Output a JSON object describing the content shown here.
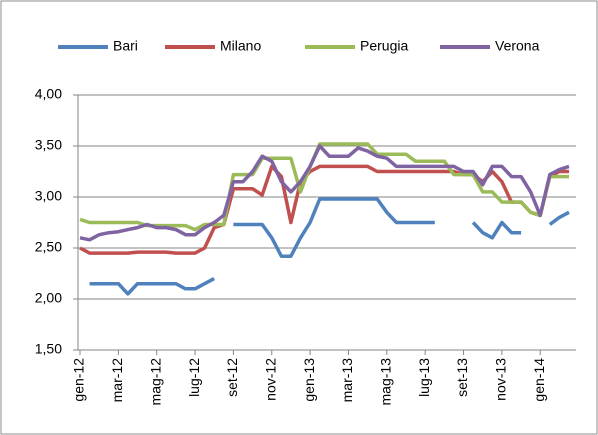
{
  "chart_data": {
    "type": "line",
    "categories": [
      "gen-12",
      null,
      null,
      null,
      "mar-12",
      null,
      null,
      null,
      "mag-12",
      null,
      null,
      null,
      "lug-12",
      null,
      null,
      null,
      "set-12",
      null,
      null,
      null,
      "nov-12",
      null,
      null,
      null,
      "gen-13",
      null,
      null,
      null,
      "mar-13",
      null,
      null,
      null,
      "mag-13",
      null,
      null,
      null,
      "lug-13",
      null,
      null,
      null,
      "set-13",
      null,
      null,
      null,
      "nov-13",
      null,
      null,
      null,
      "gen-14",
      null,
      null,
      null
    ],
    "series": [
      {
        "name": "Bari",
        "color": "#4f81bd",
        "values": [
          null,
          2.15,
          2.15,
          2.15,
          2.15,
          2.05,
          2.15,
          2.15,
          2.15,
          2.15,
          2.15,
          2.1,
          2.1,
          2.15,
          2.2,
          null,
          2.73,
          2.73,
          2.73,
          2.73,
          2.6,
          2.42,
          2.42,
          2.6,
          2.75,
          2.98,
          2.98,
          2.98,
          2.98,
          2.98,
          2.98,
          2.98,
          2.85,
          2.75,
          2.75,
          2.75,
          2.75,
          2.75,
          null,
          null,
          null,
          2.75,
          2.65,
          2.6,
          2.75,
          2.65,
          2.65,
          null,
          null,
          2.73,
          2.8,
          2.85
        ]
      },
      {
        "name": "Milano",
        "color": "#c0504d",
        "values": [
          2.5,
          2.45,
          2.45,
          2.45,
          2.45,
          2.45,
          2.46,
          2.46,
          2.46,
          2.46,
          2.45,
          2.45,
          2.45,
          2.5,
          2.7,
          2.73,
          3.08,
          3.08,
          3.08,
          3.02,
          3.3,
          3.2,
          2.75,
          3.15,
          3.25,
          3.3,
          3.3,
          3.3,
          3.3,
          3.3,
          3.3,
          3.25,
          3.25,
          3.25,
          3.25,
          3.25,
          3.25,
          3.25,
          3.25,
          3.25,
          3.22,
          3.22,
          3.15,
          3.25,
          3.15,
          2.95,
          2.95,
          2.85,
          2.82,
          3.2,
          3.25,
          3.25
        ]
      },
      {
        "name": "Perugia",
        "color": "#9bbb59",
        "values": [
          2.78,
          2.75,
          2.75,
          2.75,
          2.75,
          2.75,
          2.75,
          2.72,
          2.72,
          2.72,
          2.72,
          2.72,
          2.68,
          2.73,
          2.73,
          2.73,
          3.22,
          3.22,
          3.22,
          3.38,
          3.38,
          3.38,
          3.38,
          3.05,
          3.3,
          3.52,
          3.52,
          3.52,
          3.52,
          3.52,
          3.52,
          3.42,
          3.42,
          3.42,
          3.42,
          3.35,
          3.35,
          3.35,
          3.35,
          3.22,
          3.22,
          3.22,
          3.05,
          3.05,
          2.95,
          2.95,
          2.95,
          2.85,
          2.82,
          3.2,
          3.2,
          3.2
        ]
      },
      {
        "name": "Verona",
        "color": "#8064a2",
        "values": [
          2.6,
          2.58,
          2.63,
          2.65,
          2.66,
          2.68,
          2.7,
          2.73,
          2.7,
          2.7,
          2.68,
          2.63,
          2.63,
          2.7,
          2.75,
          2.82,
          3.15,
          3.15,
          3.25,
          3.4,
          3.35,
          3.15,
          3.05,
          3.15,
          3.3,
          3.5,
          3.4,
          3.4,
          3.4,
          3.48,
          3.45,
          3.4,
          3.38,
          3.3,
          3.3,
          3.3,
          3.3,
          3.3,
          3.3,
          3.3,
          3.25,
          3.25,
          3.12,
          3.3,
          3.3,
          3.2,
          3.2,
          3.05,
          2.82,
          3.22,
          3.27,
          3.3
        ]
      }
    ],
    "ylim": [
      1.5,
      4
    ],
    "yticks": [
      {
        "value": 1.5,
        "label": "1,50"
      },
      {
        "value": 2,
        "label": "2,00"
      },
      {
        "value": 2.5,
        "label": "2,50"
      },
      {
        "value": 3,
        "label": "3,00"
      },
      {
        "value": 3.5,
        "label": "3,50"
      },
      {
        "value": 4,
        "label": "4,00"
      }
    ],
    "grid": true,
    "legend": "top"
  }
}
